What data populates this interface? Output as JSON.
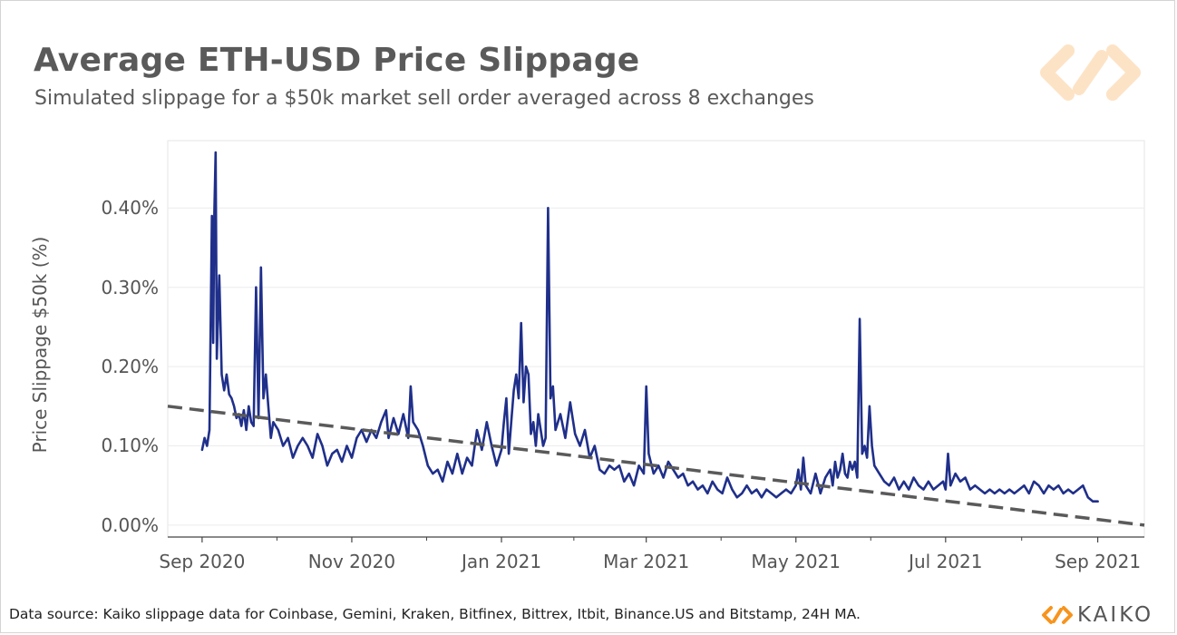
{
  "header": {
    "title": "Average ETH-USD Price Slippage",
    "subtitle": "Simulated slippage for a $50k market sell order averaged across 8 exchanges"
  },
  "footer": {
    "source": "Data source: Kaiko slippage data for Coinbase, Gemini, Kraken, Bitfinex, Bittrex, Itbit, Binance.US and Bitstamp, 24H MA."
  },
  "brand": {
    "name": "KAIKO",
    "logo_icon": "kaiko-logo-icon",
    "accent": "#f7941d"
  },
  "chart_data": {
    "type": "line",
    "title": "Average ETH-USD Price Slippage",
    "subtitle": "Simulated slippage for a $50k market sell order averaged across 8 exchanges",
    "xlabel": "",
    "ylabel": "Price Slippage $50k (%)",
    "x_tick_labels": [
      "Sep 2020",
      "Nov 2020",
      "Jan 2021",
      "Mar 2021",
      "May 2021",
      "Jul 2021",
      "Sep 2021"
    ],
    "x_tick_dates": [
      "2020-09-01",
      "2020-11-01",
      "2021-01-01",
      "2021-03-01",
      "2021-05-01",
      "2021-07-01",
      "2021-09-01"
    ],
    "xlim": [
      "2020-08-18",
      "2021-09-20"
    ],
    "y_tick_labels": [
      "0.00%",
      "0.10%",
      "0.20%",
      "0.30%",
      "0.40%"
    ],
    "y_tick_values": [
      0,
      0.1,
      0.2,
      0.3,
      0.4
    ],
    "ylim": [
      -0.015,
      0.485
    ],
    "grid": "horizontal",
    "legend": "none",
    "series": [
      {
        "style": "solid",
        "color": "#1f2f8a",
        "points": [
          [
            "2020-09-01",
            0.095
          ],
          [
            "2020-09-02",
            0.11
          ],
          [
            "2020-09-03",
            0.1
          ],
          [
            "2020-09-04",
            0.12
          ],
          [
            "2020-09-05",
            0.39
          ],
          [
            "2020-09-05T12",
            0.23
          ],
          [
            "2020-09-06",
            0.395
          ],
          [
            "2020-09-06T12",
            0.47
          ],
          [
            "2020-09-07",
            0.21
          ],
          [
            "2020-09-08",
            0.315
          ],
          [
            "2020-09-09",
            0.19
          ],
          [
            "2020-09-10",
            0.17
          ],
          [
            "2020-09-11",
            0.19
          ],
          [
            "2020-09-12",
            0.165
          ],
          [
            "2020-09-13",
            0.16
          ],
          [
            "2020-09-14",
            0.15
          ],
          [
            "2020-09-15",
            0.135
          ],
          [
            "2020-09-16",
            0.14
          ],
          [
            "2020-09-17",
            0.125
          ],
          [
            "2020-09-18",
            0.145
          ],
          [
            "2020-09-19",
            0.12
          ],
          [
            "2020-09-20",
            0.15
          ],
          [
            "2020-09-21",
            0.13
          ],
          [
            "2020-09-22",
            0.125
          ],
          [
            "2020-09-23",
            0.3
          ],
          [
            "2020-09-24",
            0.135
          ],
          [
            "2020-09-25",
            0.325
          ],
          [
            "2020-09-26",
            0.16
          ],
          [
            "2020-09-27",
            0.19
          ],
          [
            "2020-09-28",
            0.15
          ],
          [
            "2020-09-29",
            0.11
          ],
          [
            "2020-09-30",
            0.13
          ],
          [
            "2020-10-02",
            0.12
          ],
          [
            "2020-10-04",
            0.1
          ],
          [
            "2020-10-06",
            0.11
          ],
          [
            "2020-10-08",
            0.085
          ],
          [
            "2020-10-10",
            0.1
          ],
          [
            "2020-10-12",
            0.11
          ],
          [
            "2020-10-14",
            0.1
          ],
          [
            "2020-10-16",
            0.085
          ],
          [
            "2020-10-18",
            0.115
          ],
          [
            "2020-10-20",
            0.1
          ],
          [
            "2020-10-22",
            0.075
          ],
          [
            "2020-10-24",
            0.09
          ],
          [
            "2020-10-26",
            0.095
          ],
          [
            "2020-10-28",
            0.08
          ],
          [
            "2020-10-30",
            0.1
          ],
          [
            "2020-11-01",
            0.085
          ],
          [
            "2020-11-03",
            0.11
          ],
          [
            "2020-11-05",
            0.12
          ],
          [
            "2020-11-07",
            0.105
          ],
          [
            "2020-11-09",
            0.12
          ],
          [
            "2020-11-11",
            0.11
          ],
          [
            "2020-11-13",
            0.13
          ],
          [
            "2020-11-15",
            0.145
          ],
          [
            "2020-11-16",
            0.11
          ],
          [
            "2020-11-18",
            0.135
          ],
          [
            "2020-11-20",
            0.115
          ],
          [
            "2020-11-22",
            0.14
          ],
          [
            "2020-11-24",
            0.11
          ],
          [
            "2020-11-25",
            0.175
          ],
          [
            "2020-11-26",
            0.13
          ],
          [
            "2020-11-28",
            0.12
          ],
          [
            "2020-11-30",
            0.1
          ],
          [
            "2020-12-02",
            0.075
          ],
          [
            "2020-12-04",
            0.065
          ],
          [
            "2020-12-06",
            0.07
          ],
          [
            "2020-12-08",
            0.055
          ],
          [
            "2020-12-10",
            0.08
          ],
          [
            "2020-12-12",
            0.065
          ],
          [
            "2020-12-14",
            0.09
          ],
          [
            "2020-12-16",
            0.065
          ],
          [
            "2020-12-18",
            0.085
          ],
          [
            "2020-12-20",
            0.075
          ],
          [
            "2020-12-22",
            0.12
          ],
          [
            "2020-12-24",
            0.095
          ],
          [
            "2020-12-26",
            0.13
          ],
          [
            "2020-12-28",
            0.1
          ],
          [
            "2020-12-30",
            0.075
          ],
          [
            "2021-01-01",
            0.095
          ],
          [
            "2021-01-02",
            0.13
          ],
          [
            "2021-01-03",
            0.16
          ],
          [
            "2021-01-04",
            0.09
          ],
          [
            "2021-01-05",
            0.13
          ],
          [
            "2021-01-06",
            0.17
          ],
          [
            "2021-01-07",
            0.19
          ],
          [
            "2021-01-08",
            0.16
          ],
          [
            "2021-01-09",
            0.255
          ],
          [
            "2021-01-10",
            0.155
          ],
          [
            "2021-01-11",
            0.2
          ],
          [
            "2021-01-12",
            0.19
          ],
          [
            "2021-01-13",
            0.115
          ],
          [
            "2021-01-14",
            0.13
          ],
          [
            "2021-01-15",
            0.1
          ],
          [
            "2021-01-16",
            0.14
          ],
          [
            "2021-01-17",
            0.12
          ],
          [
            "2021-01-18",
            0.1
          ],
          [
            "2021-01-19",
            0.11
          ],
          [
            "2021-01-20",
            0.4
          ],
          [
            "2021-01-21",
            0.16
          ],
          [
            "2021-01-22",
            0.175
          ],
          [
            "2021-01-23",
            0.12
          ],
          [
            "2021-01-25",
            0.14
          ],
          [
            "2021-01-27",
            0.11
          ],
          [
            "2021-01-29",
            0.155
          ],
          [
            "2021-01-31",
            0.115
          ],
          [
            "2021-02-02",
            0.1
          ],
          [
            "2021-02-04",
            0.12
          ],
          [
            "2021-02-06",
            0.085
          ],
          [
            "2021-02-08",
            0.1
          ],
          [
            "2021-02-10",
            0.07
          ],
          [
            "2021-02-12",
            0.065
          ],
          [
            "2021-02-14",
            0.075
          ],
          [
            "2021-02-16",
            0.07
          ],
          [
            "2021-02-18",
            0.075
          ],
          [
            "2021-02-20",
            0.055
          ],
          [
            "2021-02-22",
            0.065
          ],
          [
            "2021-02-24",
            0.05
          ],
          [
            "2021-02-26",
            0.075
          ],
          [
            "2021-02-28",
            0.065
          ],
          [
            "2021-03-01",
            0.175
          ],
          [
            "2021-03-02",
            0.09
          ],
          [
            "2021-03-04",
            0.065
          ],
          [
            "2021-03-06",
            0.075
          ],
          [
            "2021-03-08",
            0.06
          ],
          [
            "2021-03-10",
            0.08
          ],
          [
            "2021-03-12",
            0.07
          ],
          [
            "2021-03-14",
            0.06
          ],
          [
            "2021-03-16",
            0.065
          ],
          [
            "2021-03-18",
            0.05
          ],
          [
            "2021-03-20",
            0.055
          ],
          [
            "2021-03-22",
            0.045
          ],
          [
            "2021-03-24",
            0.05
          ],
          [
            "2021-03-26",
            0.04
          ],
          [
            "2021-03-28",
            0.055
          ],
          [
            "2021-03-30",
            0.045
          ],
          [
            "2021-04-01",
            0.04
          ],
          [
            "2021-04-03",
            0.06
          ],
          [
            "2021-04-05",
            0.045
          ],
          [
            "2021-04-07",
            0.035
          ],
          [
            "2021-04-09",
            0.04
          ],
          [
            "2021-04-11",
            0.05
          ],
          [
            "2021-04-13",
            0.04
          ],
          [
            "2021-04-15",
            0.045
          ],
          [
            "2021-04-17",
            0.035
          ],
          [
            "2021-04-19",
            0.045
          ],
          [
            "2021-04-21",
            0.04
          ],
          [
            "2021-04-23",
            0.035
          ],
          [
            "2021-04-25",
            0.04
          ],
          [
            "2021-04-27",
            0.045
          ],
          [
            "2021-04-29",
            0.04
          ],
          [
            "2021-05-01",
            0.05
          ],
          [
            "2021-05-02",
            0.07
          ],
          [
            "2021-05-03",
            0.045
          ],
          [
            "2021-05-04",
            0.085
          ],
          [
            "2021-05-05",
            0.05
          ],
          [
            "2021-05-07",
            0.04
          ],
          [
            "2021-05-09",
            0.065
          ],
          [
            "2021-05-11",
            0.04
          ],
          [
            "2021-05-13",
            0.06
          ],
          [
            "2021-05-15",
            0.07
          ],
          [
            "2021-05-16",
            0.05
          ],
          [
            "2021-05-17",
            0.08
          ],
          [
            "2021-05-18",
            0.06
          ],
          [
            "2021-05-19",
            0.07
          ],
          [
            "2021-05-20",
            0.09
          ],
          [
            "2021-05-21",
            0.065
          ],
          [
            "2021-05-22",
            0.06
          ],
          [
            "2021-05-23",
            0.08
          ],
          [
            "2021-05-24",
            0.07
          ],
          [
            "2021-05-25",
            0.08
          ],
          [
            "2021-05-26",
            0.06
          ],
          [
            "2021-05-27",
            0.26
          ],
          [
            "2021-05-28",
            0.09
          ],
          [
            "2021-05-29",
            0.1
          ],
          [
            "2021-05-30",
            0.085
          ],
          [
            "2021-05-31",
            0.15
          ],
          [
            "2021-06-01",
            0.1
          ],
          [
            "2021-06-02",
            0.075
          ],
          [
            "2021-06-04",
            0.065
          ],
          [
            "2021-06-06",
            0.055
          ],
          [
            "2021-06-08",
            0.05
          ],
          [
            "2021-06-10",
            0.06
          ],
          [
            "2021-06-12",
            0.045
          ],
          [
            "2021-06-14",
            0.055
          ],
          [
            "2021-06-16",
            0.045
          ],
          [
            "2021-06-18",
            0.06
          ],
          [
            "2021-06-20",
            0.05
          ],
          [
            "2021-06-22",
            0.045
          ],
          [
            "2021-06-24",
            0.055
          ],
          [
            "2021-06-26",
            0.045
          ],
          [
            "2021-06-28",
            0.05
          ],
          [
            "2021-06-30",
            0.055
          ],
          [
            "2021-07-01",
            0.045
          ],
          [
            "2021-07-02",
            0.09
          ],
          [
            "2021-07-03",
            0.05
          ],
          [
            "2021-07-05",
            0.065
          ],
          [
            "2021-07-07",
            0.055
          ],
          [
            "2021-07-09",
            0.06
          ],
          [
            "2021-07-11",
            0.045
          ],
          [
            "2021-07-13",
            0.05
          ],
          [
            "2021-07-15",
            0.045
          ],
          [
            "2021-07-17",
            0.04
          ],
          [
            "2021-07-19",
            0.045
          ],
          [
            "2021-07-21",
            0.04
          ],
          [
            "2021-07-23",
            0.045
          ],
          [
            "2021-07-25",
            0.04
          ],
          [
            "2021-07-27",
            0.045
          ],
          [
            "2021-07-29",
            0.04
          ],
          [
            "2021-07-31",
            0.045
          ],
          [
            "2021-08-02",
            0.05
          ],
          [
            "2021-08-04",
            0.04
          ],
          [
            "2021-08-06",
            0.055
          ],
          [
            "2021-08-08",
            0.05
          ],
          [
            "2021-08-10",
            0.04
          ],
          [
            "2021-08-12",
            0.05
          ],
          [
            "2021-08-14",
            0.045
          ],
          [
            "2021-08-16",
            0.05
          ],
          [
            "2021-08-18",
            0.04
          ],
          [
            "2021-08-20",
            0.045
          ],
          [
            "2021-08-22",
            0.04
          ],
          [
            "2021-08-24",
            0.045
          ],
          [
            "2021-08-26",
            0.05
          ],
          [
            "2021-08-28",
            0.035
          ],
          [
            "2021-08-30",
            0.03
          ],
          [
            "2021-09-01",
            0.03
          ]
        ]
      },
      {
        "style": "dashed",
        "color": "#5a5a5a",
        "points": [
          [
            "2020-08-18",
            0.15
          ],
          [
            "2021-09-20",
            0.0
          ]
        ]
      }
    ]
  }
}
